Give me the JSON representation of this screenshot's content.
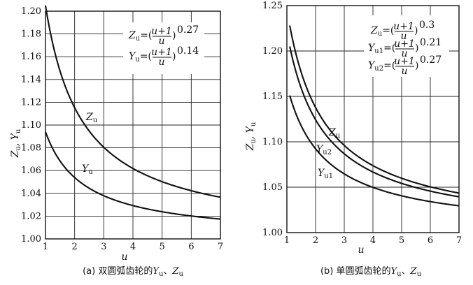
{
  "chart_data": [
    {
      "id": "a",
      "type": "line",
      "xlabel": "u",
      "ylabel_main": "Z",
      "ylabel_sub1": "u",
      "ylabel_sep": ", ",
      "ylabel_main2": "Y",
      "ylabel_sub2": "u",
      "xlim": [
        1,
        7
      ],
      "ylim": [
        1.0,
        1.2
      ],
      "xticks": [
        1,
        2,
        3,
        4,
        5,
        6,
        7
      ],
      "xtick_labels": [
        "1",
        "2",
        "3",
        "4",
        "5",
        "6",
        "7"
      ],
      "yticks": [
        1.0,
        1.02,
        1.04,
        1.06,
        1.08,
        1.1,
        1.12,
        1.14,
        1.16,
        1.18,
        1.2
      ],
      "ytick_labels": [
        "1.00",
        "1.02",
        "1.04",
        "1.06",
        "1.08",
        "1.10",
        "1.12",
        "1.14",
        "1.16",
        "1.18",
        "1.20"
      ],
      "grid": true,
      "series": [
        {
          "name": "Zu",
          "label_main": "Z",
          "label_sub": "u",
          "exponent": 0.27,
          "x": [
            1,
            1.5,
            2,
            2.5,
            3,
            3.5,
            4,
            4.5,
            5,
            5.5,
            6,
            6.5,
            7
          ],
          "values": [
            1.205,
            1.16,
            1.116,
            1.095,
            1.081,
            1.071,
            1.062,
            1.056,
            1.051,
            1.047,
            1.043,
            1.04,
            1.037
          ]
        },
        {
          "name": "Yu",
          "label_main": "Y",
          "label_sub": "u",
          "exponent": 0.14,
          "x": [
            1,
            1.5,
            2,
            2.5,
            3,
            3.5,
            4,
            4.5,
            5,
            5.5,
            6,
            6.5,
            7
          ],
          "values": [
            1.094,
            1.073,
            1.059,
            1.048,
            1.041,
            1.036,
            1.032,
            1.029,
            1.026,
            1.024,
            1.022,
            1.021,
            1.02
          ]
        }
      ],
      "formulas": [
        {
          "lhs_main": "Z",
          "lhs_sub": "u",
          "eq": "=(",
          "num": "u+1",
          "den": "u",
          "close": ")",
          "exp": "0.27"
        },
        {
          "lhs_main": "Y",
          "lhs_sub": "u",
          "eq": "=(",
          "num": "u+1",
          "den": "u",
          "close": ")",
          "exp": "0.14"
        }
      ],
      "caption_prefix": "(a)  双圆弧齿轮的",
      "caption_y": "Y",
      "caption_ysub": "u",
      "caption_sep": "、",
      "caption_z": "Z",
      "caption_zsub": "u"
    },
    {
      "id": "b",
      "type": "line",
      "xlabel": "u",
      "ylabel_main": "Z",
      "ylabel_sub1": "u",
      "ylabel_sep": ", ",
      "ylabel_main2": "Y",
      "ylabel_sub2": "u",
      "xlim": [
        1,
        7
      ],
      "ylim": [
        1.0,
        1.25
      ],
      "xticks": [
        1,
        2,
        3,
        4,
        5,
        6,
        7
      ],
      "xtick_labels": [
        "1",
        "2",
        "3",
        "4",
        "5",
        "6",
        "7"
      ],
      "yticks": [
        1.0,
        1.05,
        1.1,
        1.15,
        1.2,
        1.25
      ],
      "ytick_labels": [
        "1.00",
        "1.05",
        "1.10",
        "1.15",
        "1.20",
        "1.25"
      ],
      "grid": true,
      "series": [
        {
          "name": "Zu",
          "label_main": "Z",
          "label_sub": "u",
          "exponent": 0.3,
          "x": [
            1.1,
            1.5,
            2,
            2.5,
            3,
            3.5,
            4,
            4.5,
            5,
            5.5,
            6,
            6.5,
            7
          ],
          "values": [
            1.228,
            1.18,
            1.134,
            1.111,
            1.094,
            1.08,
            1.07,
            1.062,
            1.056,
            1.051,
            1.047,
            1.044,
            1.041
          ]
        },
        {
          "name": "Yu2",
          "label_main": "Y",
          "label_sub": "u2",
          "exponent": 0.27,
          "x": [
            1.1,
            1.5,
            2,
            2.5,
            3,
            3.5,
            4,
            4.5,
            5,
            5.5,
            6,
            6.5,
            7
          ],
          "values": [
            1.205,
            1.158,
            1.12,
            1.1,
            1.084,
            1.073,
            1.064,
            1.057,
            1.051,
            1.047,
            1.043,
            1.04,
            1.037
          ]
        },
        {
          "name": "Yu1",
          "label_main": "Y",
          "label_sub": "u1",
          "exponent": 0.21,
          "x": [
            1.1,
            1.5,
            2,
            2.5,
            3,
            3.5,
            4,
            4.5,
            5,
            5.5,
            6,
            6.5,
            7
          ],
          "values": [
            1.151,
            1.12,
            1.09,
            1.076,
            1.064,
            1.056,
            1.049,
            1.044,
            1.04,
            1.036,
            1.033,
            1.031,
            1.029
          ]
        }
      ],
      "formulas": [
        {
          "lhs_main": "Z",
          "lhs_sub": "u",
          "eq": "=(",
          "num": "u+1",
          "den": "u",
          "close": ")",
          "exp": "0.3"
        },
        {
          "lhs_main": "Y",
          "lhs_sub": "u1",
          "eq": "=(",
          "num": "u+1",
          "den": "u",
          "close": ")",
          "exp": "0.21"
        },
        {
          "lhs_main": "Y",
          "lhs_sub": "u2",
          "eq": "=(",
          "num": "u+1",
          "den": "u",
          "close": ")",
          "exp": "0.27"
        }
      ],
      "caption_prefix": "(b)  单圆弧齿轮的",
      "caption_y": "Y",
      "caption_ysub": "u",
      "caption_sep": "、",
      "caption_z": "Z",
      "caption_zsub": "u"
    }
  ]
}
